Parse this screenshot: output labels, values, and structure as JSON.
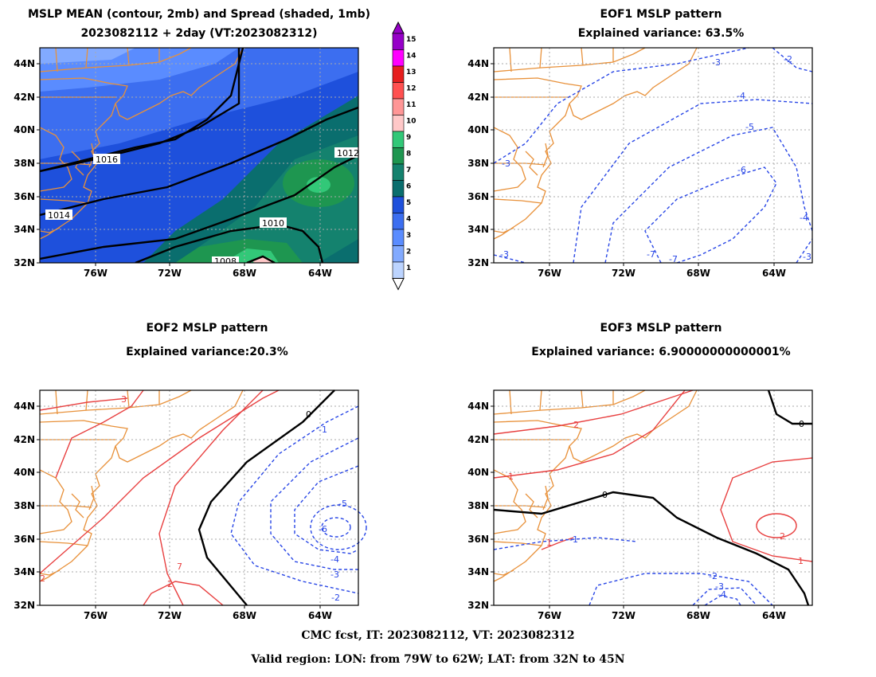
{
  "panels": {
    "p1": {
      "title1": "MSLP MEAN (contour, 2mb) and Spread (shaded, 1mb)",
      "title2": "2023082112 + 2day (VT:2023082312)"
    },
    "p2": {
      "title1": "EOF1 MSLP pattern",
      "title2": "Explained variance: 63.5%"
    },
    "p3": {
      "title1": "EOF2 MSLP pattern",
      "title2": "Explained variance:20.3%"
    },
    "p4": {
      "title1": "EOF3 MSLP pattern",
      "title2": "Explained variance: 6.90000000000001%"
    }
  },
  "axes": {
    "lat_labels": [
      "44N",
      "42N",
      "40N",
      "38N",
      "36N",
      "34N",
      "32N"
    ],
    "lon_labels": [
      "76W",
      "72W",
      "68W",
      "64W"
    ]
  },
  "colorbar": {
    "levels": [
      "1",
      "2",
      "3",
      "4",
      "5",
      "6",
      "7",
      "8",
      "9",
      "10",
      "11",
      "12",
      "13",
      "14",
      "15"
    ],
    "colors": [
      "#bcd4ff",
      "#82aaff",
      "#5a8cff",
      "#3c6ef0",
      "#1e50dc",
      "#0a6e6e",
      "#14826e",
      "#1e9650",
      "#32c878",
      "#ffc8c8",
      "#ff9696",
      "#ff5050",
      "#e61e1e",
      "#ff00ff",
      "#9600c8"
    ]
  },
  "contour_labels": {
    "p1": [
      "1016",
      "1014",
      "1012",
      "1010",
      "1008"
    ],
    "p2": [
      "-3",
      "-2",
      "-4",
      "-5",
      "-6",
      "-3",
      "-3",
      "-7",
      "-7",
      "-4",
      "-3"
    ],
    "p3": [
      "3",
      "0",
      "-1",
      "-5",
      "-6",
      "-4",
      "-3",
      "-2",
      "7",
      "2",
      "2"
    ],
    "p4": [
      "2",
      "0",
      "1",
      "0",
      "-1",
      "1",
      "-2",
      "-3",
      "-4",
      "2",
      "1"
    ]
  },
  "footer": {
    "line1": "CMC fcst, IT: 2023082112, VT: 2023082312",
    "line2": "Valid region: LON: from 79W to 62W; LAT: from 32N to 45N"
  },
  "colors": {
    "coast": "#e8913a",
    "positive": "#e84040",
    "negative": "#2846e6",
    "zero": "#000000",
    "grid": "#aaaaaa"
  }
}
